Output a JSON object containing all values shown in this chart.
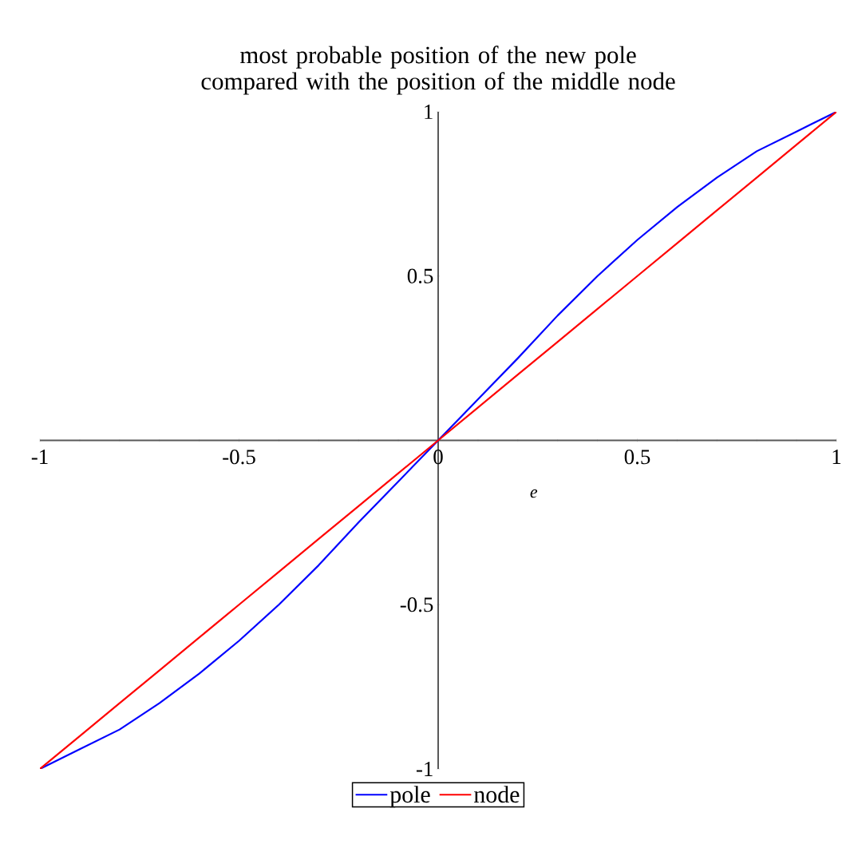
{
  "chart_data": {
    "type": "line",
    "title": "most probable position of the new pole compared with the position of the middle node",
    "xlabel": "*e*",
    "x": [
      -1,
      -0.9,
      -0.8,
      -0.7,
      -0.6,
      -0.5,
      -0.4,
      -0.3,
      -0.2,
      -0.1,
      0,
      0.1,
      0.2,
      0.3,
      0.4,
      0.5,
      0.6,
      0.7,
      0.8,
      0.9,
      1
    ],
    "series": [
      {
        "name": "pole",
        "color": "#0000ff",
        "values": [
          -1,
          -0.94,
          -0.88,
          -0.8,
          -0.71,
          -0.61,
          -0.5,
          -0.38,
          -0.25,
          -0.125,
          0,
          0.125,
          0.25,
          0.38,
          0.5,
          0.61,
          0.71,
          0.8,
          0.88,
          0.94,
          1
        ]
      },
      {
        "name": "node",
        "color": "#ff0000",
        "values": [
          -1,
          -0.9,
          -0.8,
          -0.7,
          -0.6,
          -0.5,
          -0.4,
          -0.3,
          -0.2,
          -0.1,
          0,
          0.1,
          0.2,
          0.3,
          0.4,
          0.5,
          0.6,
          0.7,
          0.8,
          0.9,
          1
        ]
      }
    ],
    "xlim": [
      -1,
      1
    ],
    "ylim": [
      -1,
      1
    ],
    "xticks": [
      -1,
      -0.5,
      0,
      0.5,
      1
    ],
    "yticks": [
      -1,
      -0.5,
      0.5,
      1
    ],
    "legend": "bottom",
    "grid": false,
    "marker": "none",
    "line_style": "solid"
  }
}
